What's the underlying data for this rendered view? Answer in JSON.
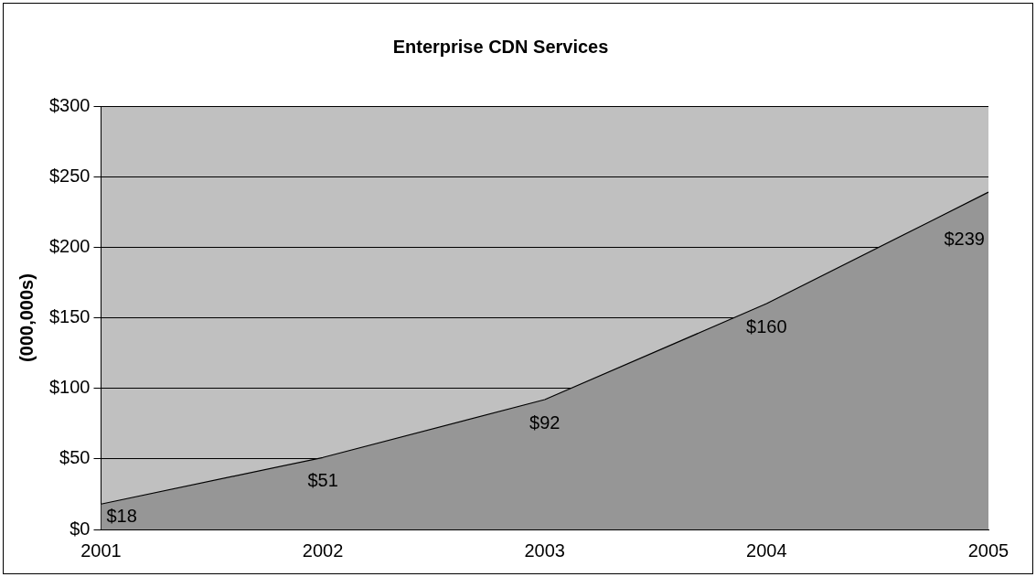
{
  "chart_data": {
    "type": "area",
    "title": "Enterprise CDN Services",
    "ylabel": "(000,000s)",
    "categories": [
      "2001",
      "2002",
      "2003",
      "2004",
      "2005"
    ],
    "series": [
      {
        "color": "#969696",
        "values": [
          18,
          51,
          92,
          160,
          239
        ],
        "value_labels": [
          "$18",
          "$51",
          "$92",
          "$160",
          "$239"
        ]
      }
    ],
    "ylim": [
      0,
      300
    ],
    "yticks": [
      {
        "value": 0,
        "label": "$0"
      },
      {
        "value": 50,
        "label": "$50"
      },
      {
        "value": 100,
        "label": "$100"
      },
      {
        "value": 150,
        "label": "$150"
      },
      {
        "value": 200,
        "label": "$200"
      },
      {
        "value": 250,
        "label": "$250"
      },
      {
        "value": 300,
        "label": "$300"
      }
    ],
    "grid": "y",
    "legend": false
  }
}
